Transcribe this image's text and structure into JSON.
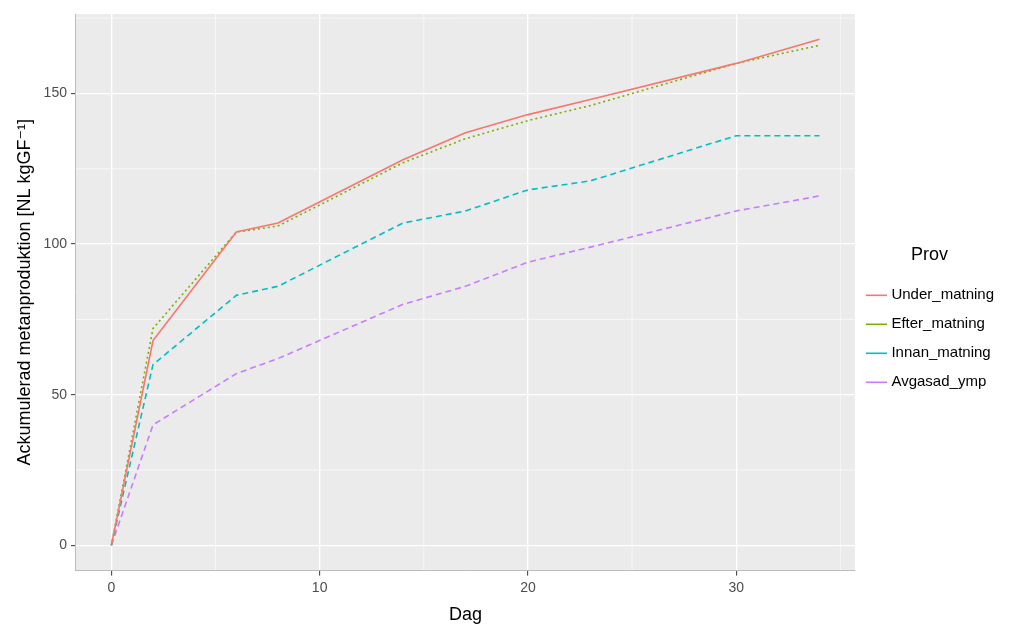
{
  "chart_data": {
    "type": "line",
    "x_label": "Dag",
    "y_label": "Ackumulerad metanproduktion [NL kgGF⁻¹]",
    "legend_title": "Prov",
    "legend": "right",
    "grid": true,
    "x": [
      0,
      2,
      6,
      8,
      14,
      17,
      20,
      23,
      30,
      34
    ],
    "xlim": [
      -1.7,
      35.7
    ],
    "xticks": [
      0,
      10,
      20,
      30
    ],
    "ylim": [
      -8.4,
      176.4
    ],
    "yticks": [
      0,
      50,
      100,
      150
    ],
    "series": [
      {
        "name": "Under_matning",
        "color": "#F8766D",
        "line_style": "solid",
        "values": [
          0,
          68,
          104,
          107,
          128,
          137,
          143,
          148,
          160,
          168
        ]
      },
      {
        "name": "Efter_matning",
        "color": "#7CAE00",
        "line_style": "dotted",
        "values": [
          0,
          72,
          104,
          106,
          127,
          135,
          141,
          146,
          160,
          166
        ]
      },
      {
        "name": "Innan_matning",
        "color": "#00BFC4",
        "line_style": "dashed",
        "values": [
          0,
          60,
          83,
          86,
          107,
          111,
          118,
          121,
          136,
          136
        ]
      },
      {
        "name": "Avgasad_ymp",
        "color": "#C77CFF",
        "line_style": "dashed",
        "values": [
          0,
          40,
          57,
          62,
          80,
          86,
          94,
          99,
          111,
          116
        ]
      }
    ]
  }
}
